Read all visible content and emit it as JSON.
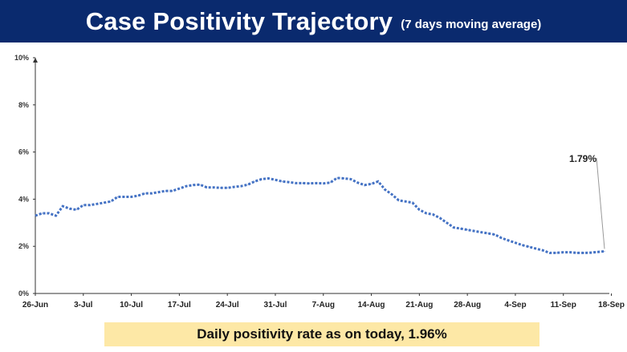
{
  "header": {
    "title": "Case Positivity Trajectory",
    "subtitle": "(7 days moving average)"
  },
  "footer": {
    "text": "Daily positivity rate as on today, 1.96%"
  },
  "colors": {
    "banner": "#0a2a6e",
    "line": "#4472c4",
    "footer_bg": "#fde8a6"
  },
  "chart_data": {
    "type": "line",
    "title": "Case Positivity Trajectory",
    "subtitle": "(7 days moving average)",
    "xlabel": "",
    "ylabel": "",
    "x_ticks": [
      "26-Jun",
      "3-Jul",
      "10-Jul",
      "17-Jul",
      "24-Jul",
      "31-Jul",
      "7-Aug",
      "14-Aug",
      "21-Aug",
      "28-Aug",
      "4-Sep",
      "11-Sep",
      "18-Sep"
    ],
    "y_ticks": [
      "0%",
      "2%",
      "4%",
      "6%",
      "8%",
      "10%"
    ],
    "ylim": [
      0,
      10
    ],
    "grid": false,
    "series": [
      {
        "style": "dotted",
        "values": [
          3.3,
          3.4,
          3.4,
          3.3,
          3.7,
          3.6,
          3.55,
          3.75,
          3.75,
          3.8,
          3.85,
          3.9,
          4.1,
          4.1,
          4.1,
          4.15,
          4.25,
          4.25,
          4.3,
          4.35,
          4.35,
          4.45,
          4.55,
          4.6,
          4.62,
          4.5,
          4.5,
          4.48,
          4.48,
          4.52,
          4.55,
          4.62,
          4.75,
          4.85,
          4.88,
          4.82,
          4.75,
          4.72,
          4.68,
          4.68,
          4.67,
          4.68,
          4.67,
          4.7,
          4.9,
          4.88,
          4.85,
          4.7,
          4.6,
          4.65,
          4.75,
          4.4,
          4.2,
          3.95,
          3.9,
          3.85,
          3.55,
          3.4,
          3.35,
          3.2,
          3.0,
          2.8,
          2.75,
          2.7,
          2.65,
          2.6,
          2.55,
          2.5,
          2.35,
          2.25,
          2.15,
          2.05,
          1.98,
          1.9,
          1.83,
          1.72,
          1.72,
          1.75,
          1.75,
          1.72,
          1.72,
          1.73,
          1.76,
          1.79
        ]
      }
    ],
    "annotation": {
      "text": "1.79%"
    }
  }
}
